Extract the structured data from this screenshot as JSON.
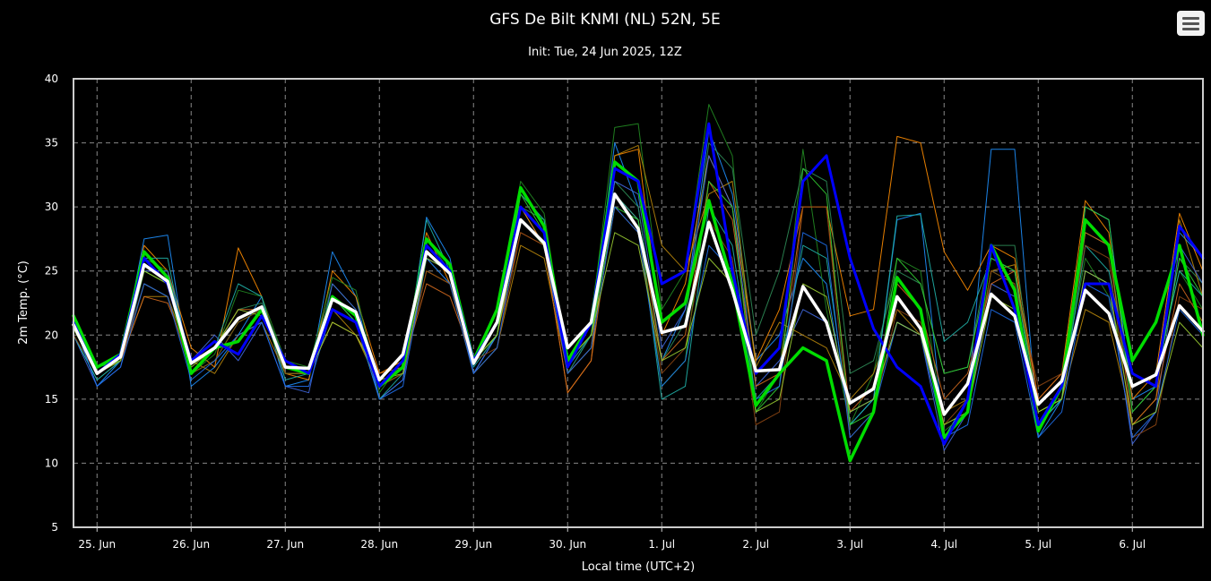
{
  "chart_data": {
    "type": "line",
    "title": "GFS De Bilt KNMI (NL) 52N, 5E",
    "subtitle": "Init: Tue, 24 Jun 2025, 12Z",
    "xlabel": "Local time (UTC+2)",
    "ylabel": "2m Temp. (°C)",
    "ylim": [
      5,
      40
    ],
    "yticks": [
      5,
      10,
      15,
      20,
      25,
      30,
      35,
      40
    ],
    "x_unit": "hours since 24 Jun 2025 18:00 local",
    "x_range": [
      0,
      288
    ],
    "x_step_hours": 6,
    "day_ticks": [
      {
        "label": "25. Jun",
        "hour": 6
      },
      {
        "label": "26. Jun",
        "hour": 30
      },
      {
        "label": "27. Jun",
        "hour": 54
      },
      {
        "label": "28. Jun",
        "hour": 78
      },
      {
        "label": "29. Jun",
        "hour": 102
      },
      {
        "label": "30. Jun",
        "hour": 126
      },
      {
        "label": "1. Jul",
        "hour": 150
      },
      {
        "label": "2. Jul",
        "hour": 174
      },
      {
        "label": "3. Jul",
        "hour": 198
      },
      {
        "label": "4. Jul",
        "hour": 222
      },
      {
        "label": "5. Jul",
        "hour": 246
      },
      {
        "label": "6. Jul",
        "hour": 270
      }
    ],
    "grid": true,
    "legend": "none",
    "colors": {
      "background": "#000000",
      "grid": "#888888",
      "axis": "#cccccc",
      "mean": "#ffffff",
      "control": "#00dd00",
      "operational": "#0000ff"
    },
    "main_series": [
      {
        "role": "control",
        "color": "#00dd00",
        "width": 3.5,
        "values": [
          21.5,
          17.5,
          18.5,
          26.5,
          24.5,
          17,
          19,
          19.5,
          22,
          17.5,
          17,
          23,
          21.5,
          16,
          17.5,
          27.5,
          25.5,
          18,
          22,
          31.5,
          28.5,
          18,
          21,
          33.5,
          32,
          21,
          22.5,
          30.5,
          24,
          14.5,
          17,
          19,
          18,
          10.2,
          14,
          24.5,
          22,
          12,
          14,
          27,
          23.5,
          12.5,
          16,
          29,
          27,
          18,
          21,
          27,
          20
        ]
      },
      {
        "role": "operational",
        "color": "#0000ff",
        "width": 3,
        "values": [
          21,
          17,
          18.5,
          26,
          24,
          18,
          19.5,
          18.5,
          21.5,
          18,
          17,
          22,
          21,
          16,
          18,
          27,
          25,
          18,
          21,
          30,
          28,
          17.5,
          21,
          33,
          32,
          24,
          25,
          36.5,
          25,
          17,
          19,
          32,
          34,
          26,
          20.5,
          17.5,
          16,
          11.5,
          15,
          27,
          22,
          13,
          16,
          24,
          24,
          17,
          16,
          28.5,
          26
        ]
      },
      {
        "role": "mean",
        "color": "#ffffff",
        "width": 3.5,
        "values": [
          20.8,
          17,
          18.3,
          25.5,
          24.2,
          17.8,
          19,
          21.3,
          22.2,
          17.5,
          17.4,
          22.8,
          21.8,
          16.5,
          18.5,
          26.5,
          24.8,
          17.8,
          21,
          29,
          27.2,
          19,
          21,
          31,
          28.3,
          20.2,
          20.7,
          28.8,
          23.5,
          17.2,
          17.3,
          23.8,
          21,
          14.7,
          15.8,
          23,
          20.5,
          13.8,
          16.2,
          23.2,
          21.5,
          14.6,
          16.4,
          23.5,
          21.7,
          16,
          16.9,
          22.3,
          20.3
        ]
      }
    ],
    "ensemble_members": [
      {
        "color": "#1e90ff",
        "values": [
          21,
          16,
          18,
          27.5,
          27.8,
          16,
          17.5,
          20,
          23,
          16,
          16.5,
          26.5,
          23,
          15,
          16.5,
          29.2,
          26,
          17,
          20,
          30,
          27,
          17,
          20,
          35,
          30,
          18,
          22,
          36,
          31,
          18,
          20,
          26,
          24,
          13,
          15,
          29,
          29.5,
          12,
          15,
          34.5,
          34.5,
          12,
          15,
          30,
          29,
          15,
          16,
          28,
          26
        ]
      },
      {
        "color": "#ff8c00",
        "values": [
          21.5,
          17,
          18,
          27,
          25,
          19,
          17.5,
          26.8,
          23,
          17,
          16.5,
          25,
          23,
          17,
          18,
          28,
          24,
          18,
          21,
          30,
          27,
          15.5,
          18,
          34,
          34.5,
          20,
          24,
          34,
          30,
          18,
          22,
          30,
          30,
          21.5,
          22,
          35.5,
          35,
          26.5,
          23.5,
          27,
          26,
          15,
          17,
          30.5,
          28,
          15,
          17,
          29.5,
          25
        ]
      },
      {
        "color": "#228b22",
        "values": [
          21,
          17.5,
          18.3,
          26,
          25,
          17,
          18.5,
          23.5,
          23,
          18,
          17.5,
          24.5,
          23.5,
          15.5,
          18,
          27.5,
          25,
          18,
          21,
          32,
          29.5,
          18,
          21,
          36.2,
          36.5,
          22,
          25,
          38,
          34,
          14,
          17,
          34.5,
          22,
          13,
          17,
          26,
          25,
          12.5,
          14,
          25,
          24,
          13,
          16,
          26,
          23,
          16,
          17,
          25,
          22
        ]
      },
      {
        "color": "#2e8b57",
        "values": [
          20,
          16.5,
          18,
          24,
          23,
          17,
          19,
          22,
          22.5,
          18,
          17,
          24,
          22,
          16,
          18,
          26,
          24,
          18,
          20,
          30,
          29,
          17,
          20,
          32,
          30,
          18,
          21,
          35,
          33,
          20,
          25,
          33,
          32,
          17,
          18,
          25,
          24,
          17,
          17.5,
          27,
          27,
          13,
          15,
          28,
          27,
          14,
          16,
          26,
          24
        ]
      },
      {
        "color": "#b8860b",
        "values": [
          21,
          17,
          18,
          23,
          23,
          18,
          17,
          20,
          21,
          17,
          17,
          22,
          20,
          16,
          17,
          25,
          24,
          17,
          19,
          27,
          26,
          17,
          19,
          34,
          34.8,
          27,
          25,
          31,
          32,
          17.5,
          21,
          20,
          19,
          15,
          17,
          22,
          20,
          14,
          15,
          25,
          25.5,
          14,
          15,
          22,
          21,
          13,
          15,
          29,
          23
        ]
      },
      {
        "color": "#4169e1",
        "values": [
          20,
          16,
          17.5,
          25,
          25,
          18,
          20,
          18,
          21,
          16,
          15.5,
          24,
          22,
          15,
          16.5,
          26,
          25,
          17,
          20,
          29,
          27,
          18,
          21,
          32,
          31,
          19,
          22,
          34,
          30,
          16,
          18,
          22,
          21,
          14,
          15,
          21,
          20,
          11,
          14,
          24,
          23,
          13,
          15,
          25,
          24,
          11.5,
          14,
          27,
          24
        ]
      },
      {
        "color": "#d2691e",
        "values": [
          21,
          17,
          18,
          23,
          22.5,
          18,
          19,
          22,
          22,
          17,
          17,
          21,
          20,
          17,
          17.5,
          24,
          23,
          18,
          20,
          28,
          27,
          15.5,
          18,
          31,
          29,
          18,
          20,
          32,
          29,
          16,
          17,
          30,
          30,
          14,
          16,
          24,
          22,
          15,
          17,
          24,
          25,
          15,
          17,
          28,
          27,
          13,
          15,
          24,
          21
        ]
      },
      {
        "color": "#20b2aa",
        "values": [
          20,
          16.5,
          18,
          26,
          26,
          17,
          19,
          24,
          23,
          16.5,
          17,
          23,
          21,
          15,
          17,
          29,
          25,
          17.5,
          20,
          31,
          29,
          17.5,
          20,
          31,
          29,
          15,
          16,
          30,
          27,
          15,
          17,
          27,
          26,
          13,
          15,
          29.3,
          29.4,
          19.5,
          21,
          26,
          25,
          13,
          15,
          27,
          25,
          16,
          17,
          25,
          23
        ]
      },
      {
        "color": "#32cd32",
        "values": [
          21,
          17.5,
          18,
          25,
          24,
          17,
          18,
          21,
          22,
          17,
          17,
          23,
          21,
          16,
          17,
          27,
          25,
          18,
          20,
          31,
          28,
          18,
          20,
          30,
          29,
          16,
          18,
          32,
          30,
          14,
          16,
          33,
          31,
          13,
          14,
          26,
          24,
          17,
          17.5,
          26,
          25,
          14,
          15,
          30,
          29,
          14,
          16,
          26,
          23
        ]
      },
      {
        "color": "#8b4513",
        "values": [
          20,
          17,
          18,
          24,
          23,
          17,
          18,
          21,
          22,
          17,
          17,
          22,
          21,
          16,
          17,
          25,
          24,
          18,
          19,
          28,
          27,
          17,
          19,
          30,
          28,
          17,
          19,
          29,
          26,
          13,
          14,
          30,
          30,
          12,
          14,
          22,
          21,
          13,
          15,
          25,
          24,
          16,
          17,
          27,
          26,
          12,
          13,
          23,
          22
        ]
      },
      {
        "color": "#1f6feb",
        "values": [
          21,
          16,
          17.5,
          24,
          23,
          16.5,
          18,
          20,
          21,
          16,
          16,
          22,
          21,
          15,
          16,
          26,
          24,
          17,
          19,
          29,
          27,
          17,
          19,
          30,
          28,
          16,
          18,
          27,
          25,
          15,
          16,
          28,
          27,
          12,
          14,
          21,
          20,
          12,
          13,
          22,
          21,
          12,
          14,
          24,
          23,
          12,
          14,
          22,
          20
        ]
      },
      {
        "color": "#9acd32",
        "values": [
          20.5,
          17,
          18,
          25,
          24,
          17.5,
          19,
          22,
          21.5,
          18,
          17,
          21,
          20,
          16.5,
          17,
          26,
          25,
          18,
          20,
          29,
          27,
          18,
          20,
          28,
          27,
          18,
          19,
          26,
          24,
          14,
          15,
          24,
          23,
          14,
          15,
          21,
          20,
          13,
          14,
          23,
          22,
          14,
          15,
          25,
          24,
          13,
          14,
          21,
          19
        ]
      }
    ]
  }
}
